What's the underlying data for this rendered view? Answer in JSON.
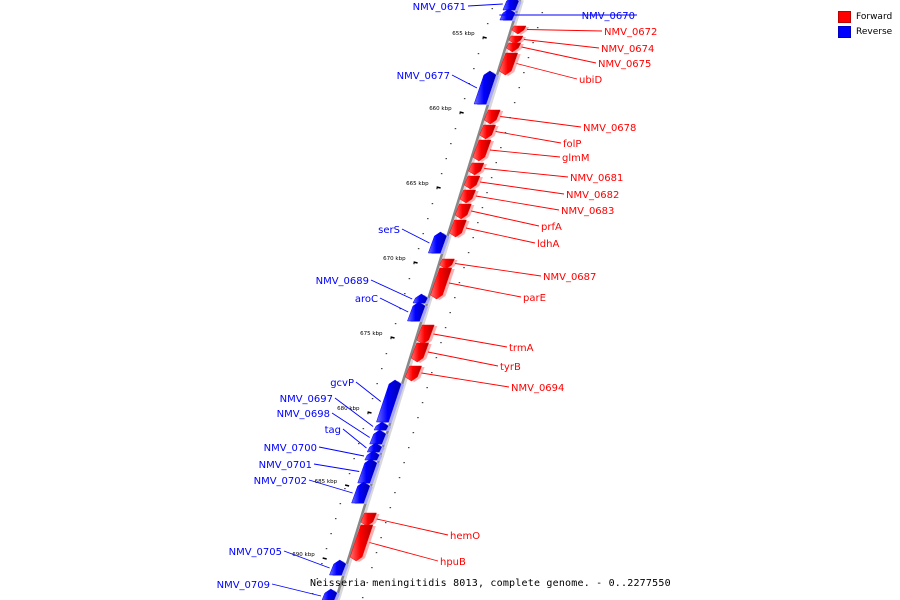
{
  "legend": [
    {
      "label": "Forward",
      "color": "#ff0000"
    },
    {
      "label": "Reverse",
      "color": "#0000ff"
    }
  ],
  "caption": "Neisseria meningitidis 8013, complete genome. - 0..2277550",
  "colors": {
    "forward": "#ff0000",
    "reverse": "#0000ff",
    "axis": "#888888"
  },
  "ticks": [
    "655 kbp",
    "660 kbp",
    "665 kbp",
    "670 kbp",
    "675 kbp",
    "680 kbp",
    "685 kbp",
    "690 kbp"
  ],
  "genes": [
    {
      "label": "NMV_0671",
      "strand": "reverse"
    },
    {
      "label": "NMV_0670",
      "strand": "reverse"
    },
    {
      "label": "NMV_0672",
      "strand": "forward"
    },
    {
      "label": "NMV_0674",
      "strand": "forward"
    },
    {
      "label": "NMV_0675",
      "strand": "forward"
    },
    {
      "label": "NMV_0677",
      "strand": "reverse"
    },
    {
      "label": "ubiD",
      "strand": "forward"
    },
    {
      "label": "NMV_0678",
      "strand": "forward"
    },
    {
      "label": "folP",
      "strand": "forward"
    },
    {
      "label": "glmM",
      "strand": "forward"
    },
    {
      "label": "NMV_0681",
      "strand": "forward"
    },
    {
      "label": "NMV_0682",
      "strand": "forward"
    },
    {
      "label": "NMV_0683",
      "strand": "forward"
    },
    {
      "label": "prfA",
      "strand": "forward"
    },
    {
      "label": "serS",
      "strand": "reverse"
    },
    {
      "label": "ldhA",
      "strand": "forward"
    },
    {
      "label": "NMV_0687",
      "strand": "forward"
    },
    {
      "label": "NMV_0689",
      "strand": "reverse"
    },
    {
      "label": "parE",
      "strand": "forward"
    },
    {
      "label": "aroC",
      "strand": "reverse"
    },
    {
      "label": "trmA",
      "strand": "forward"
    },
    {
      "label": "tyrB",
      "strand": "forward"
    },
    {
      "label": "gcvP",
      "strand": "reverse"
    },
    {
      "label": "NMV_0694",
      "strand": "forward"
    },
    {
      "label": "NMV_0697",
      "strand": "reverse"
    },
    {
      "label": "NMV_0698",
      "strand": "reverse"
    },
    {
      "label": "tag",
      "strand": "reverse"
    },
    {
      "label": "NMV_0700",
      "strand": "reverse"
    },
    {
      "label": "NMV_0701",
      "strand": "reverse"
    },
    {
      "label": "NMV_0702",
      "strand": "reverse"
    },
    {
      "label": "hemO",
      "strand": "forward"
    },
    {
      "label": "hpuB",
      "strand": "forward"
    },
    {
      "label": "NMV_0705",
      "strand": "reverse"
    },
    {
      "label": "NMV_0709",
      "strand": "reverse"
    }
  ]
}
